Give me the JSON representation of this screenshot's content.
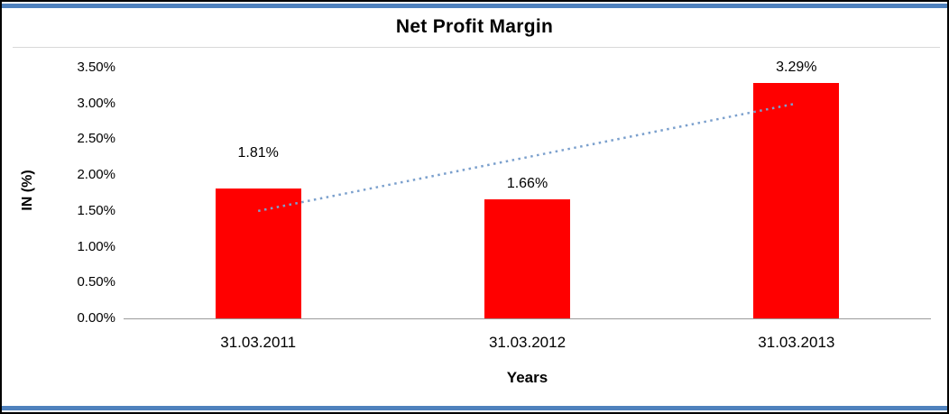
{
  "colors": {
    "accent_border": "#4f81bd",
    "bar": "#ff0000",
    "trendline": "#7ba0cd",
    "axis_line": "#9b9b9b",
    "text": "#000000"
  },
  "chart_data": {
    "type": "bar",
    "title": "Net Profit Margin",
    "xlabel": "Years",
    "ylabel": "IN (%)",
    "categories": [
      "31.03.2011",
      "31.03.2012",
      "31.03.2013"
    ],
    "values": [
      1.81,
      1.66,
      3.29
    ],
    "value_labels": [
      "1.81%",
      "1.66%",
      "3.29%"
    ],
    "ylim": [
      0,
      3.5
    ],
    "ytick_labels": [
      "0.00%",
      "0.50%",
      "1.00%",
      "1.50%",
      "2.00%",
      "2.50%",
      "3.00%",
      "3.50%"
    ],
    "grid": "off",
    "legend": "none",
    "trendline": {
      "style": "dotted",
      "start_value": 1.5,
      "end_value": 3.0
    }
  }
}
